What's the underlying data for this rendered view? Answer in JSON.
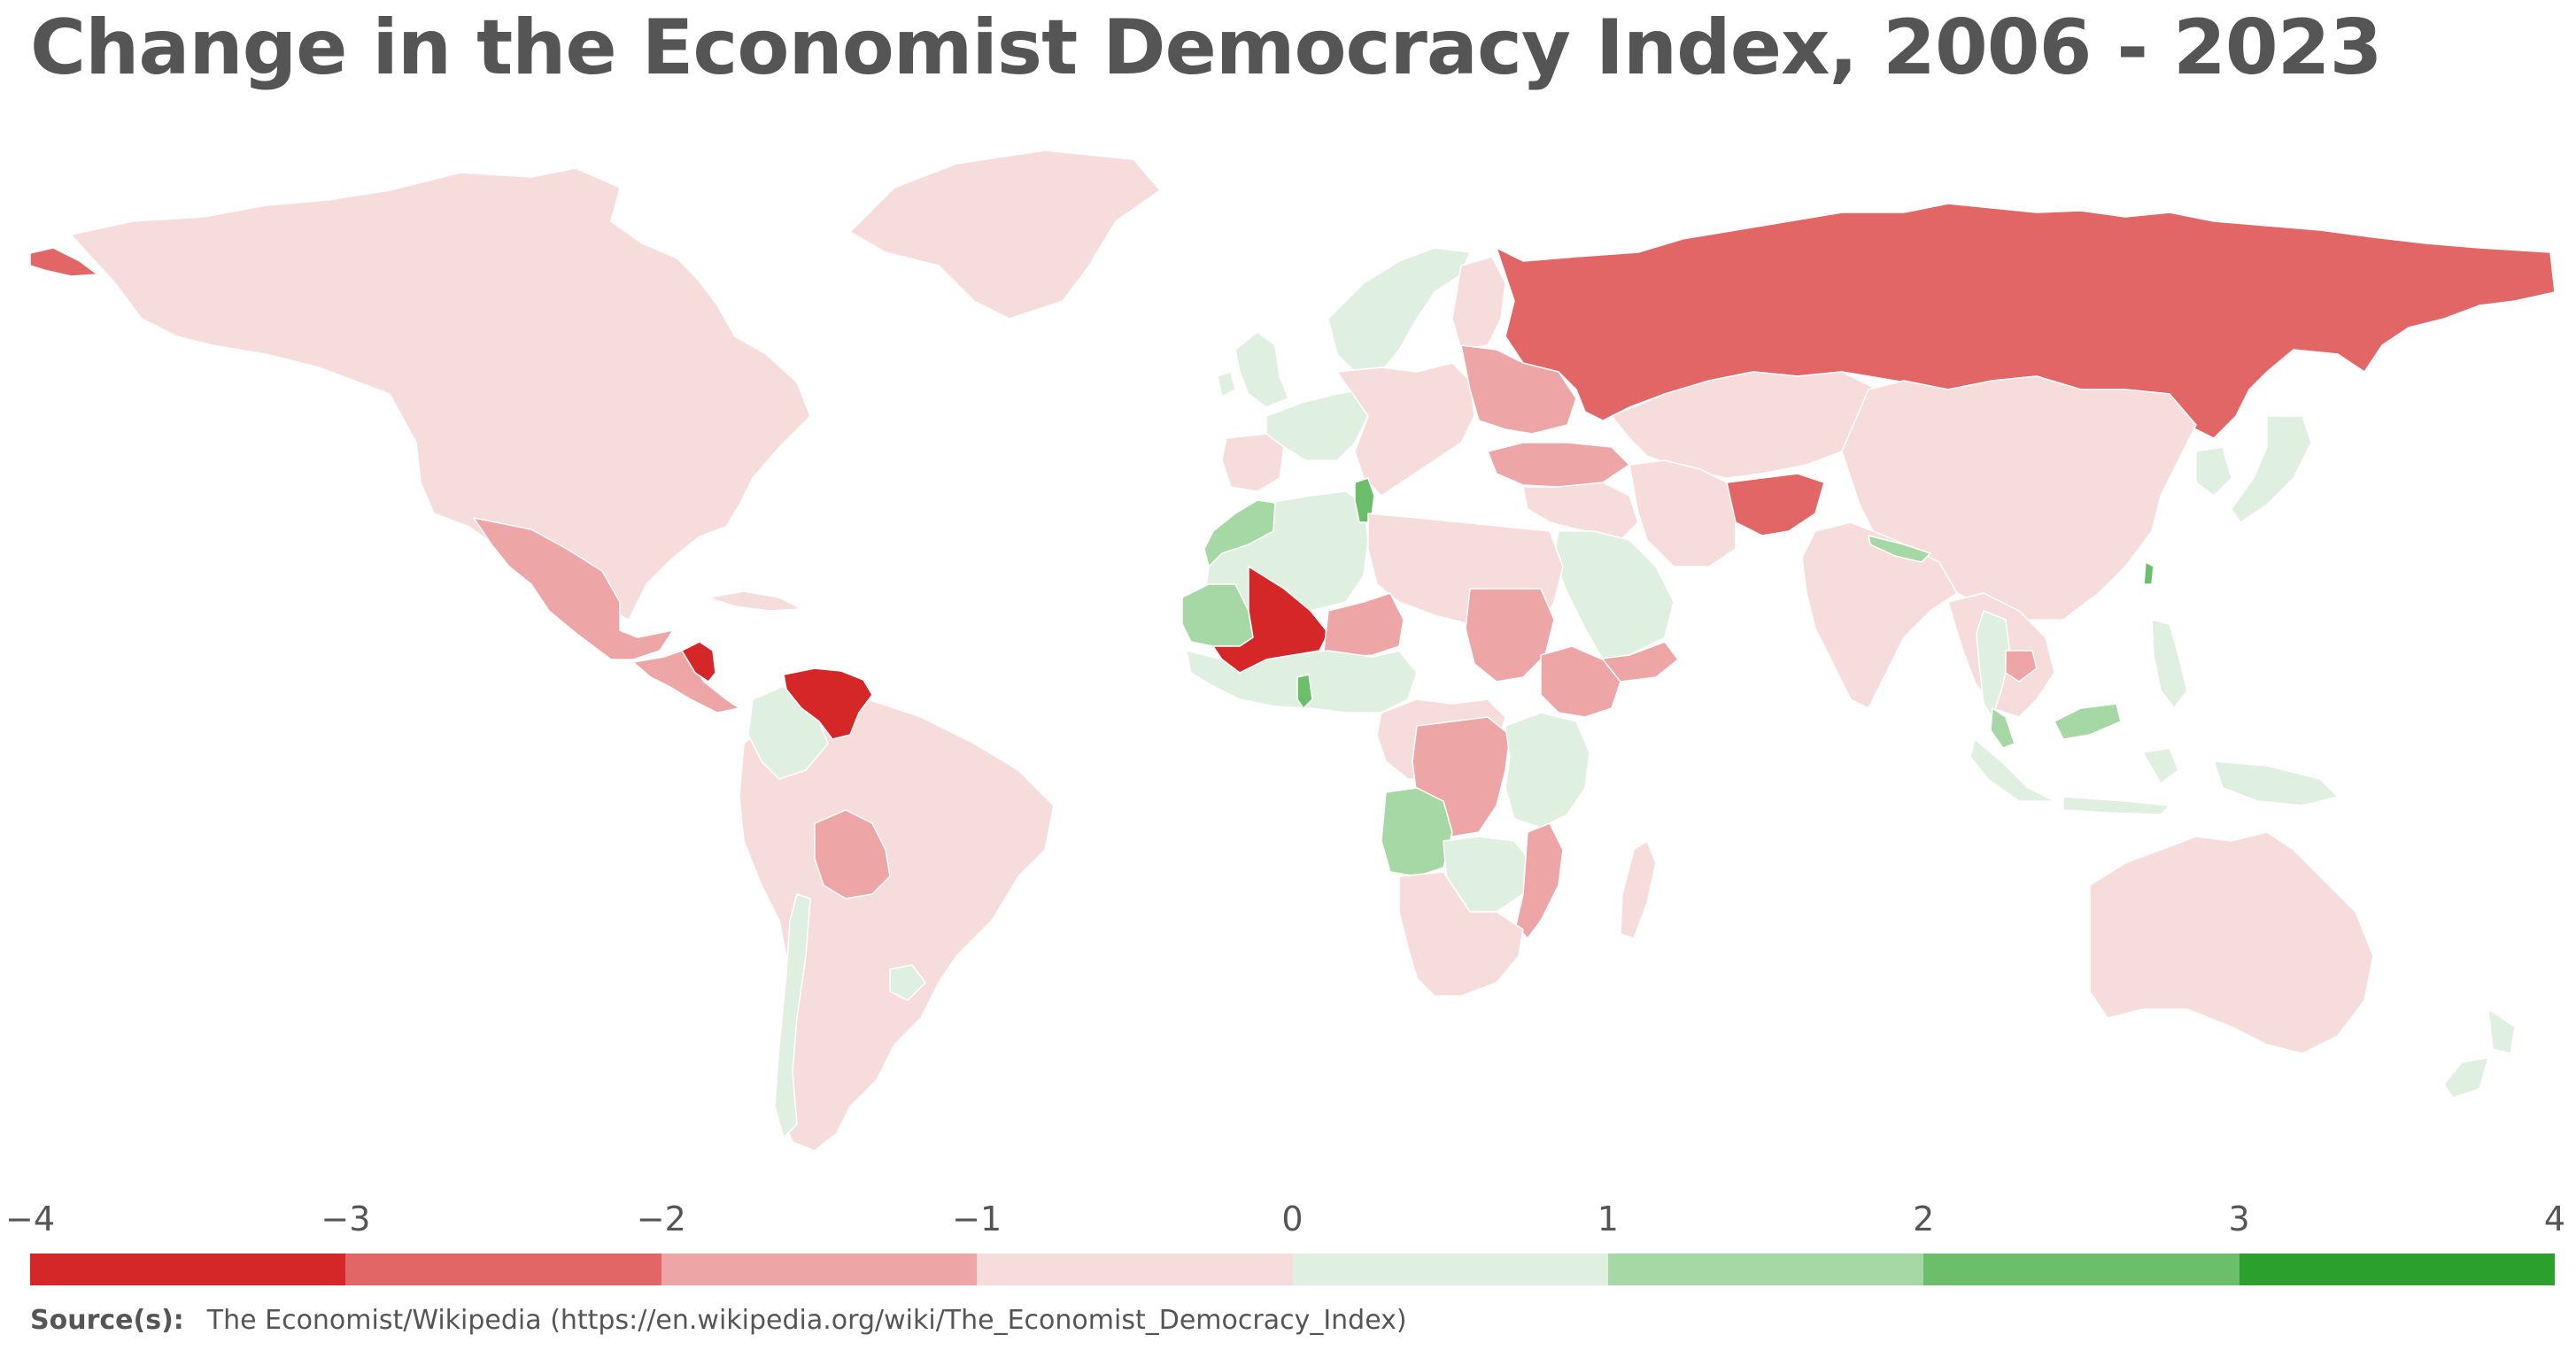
{
  "title": "Change in the Economist Democracy Index, 2006 - 2023",
  "legend": {
    "ticks": [
      "−4",
      "−3",
      "−2",
      "−1",
      "0",
      "1",
      "2",
      "3",
      "4"
    ],
    "bins": [
      {
        "range": [
          -4,
          -3
        ],
        "color": "#d62728"
      },
      {
        "range": [
          -3,
          -2
        ],
        "color": "#e26666"
      },
      {
        "range": [
          -2,
          -1
        ],
        "color": "#eda5a5"
      },
      {
        "range": [
          -1,
          0
        ],
        "color": "#f7dcdc"
      },
      {
        "range": [
          0,
          1
        ],
        "color": "#dfefe0"
      },
      {
        "range": [
          1,
          2
        ],
        "color": "#a6d8a6"
      },
      {
        "range": [
          2,
          3
        ],
        "color": "#6bbf6b"
      },
      {
        "range": [
          3,
          4
        ],
        "color": "#2ca02c"
      }
    ]
  },
  "source": {
    "label": "Source(s):",
    "text": "The Economist/Wikipedia (https://en.wikipedia.org/wiki/The_Economist_Democracy_Index)"
  },
  "map": {
    "regions": [
      {
        "name": "north-america",
        "bin": 3
      },
      {
        "name": "greenland",
        "bin": 3
      },
      {
        "name": "alaska-tip",
        "bin": 1
      },
      {
        "name": "mexico",
        "bin": 2
      },
      {
        "name": "central-america",
        "bin": 2
      },
      {
        "name": "nicaragua",
        "bin": 0
      },
      {
        "name": "cuba",
        "bin": 3
      },
      {
        "name": "south-america",
        "bin": 3
      },
      {
        "name": "venezuela",
        "bin": 0
      },
      {
        "name": "colombia",
        "bin": 4
      },
      {
        "name": "bolivia",
        "bin": 2
      },
      {
        "name": "chile",
        "bin": 4
      },
      {
        "name": "uruguay",
        "bin": 4
      },
      {
        "name": "norway-sweden",
        "bin": 4
      },
      {
        "name": "finland",
        "bin": 3
      },
      {
        "name": "british-isles",
        "bin": 4
      },
      {
        "name": "western-europe",
        "bin": 4
      },
      {
        "name": "iberia",
        "bin": 3
      },
      {
        "name": "central-europe",
        "bin": 3
      },
      {
        "name": "belarus-ukraine",
        "bin": 2
      },
      {
        "name": "turkey",
        "bin": 2
      },
      {
        "name": "russia",
        "bin": 1
      },
      {
        "name": "kazakhstan-central-asia",
        "bin": 3
      },
      {
        "name": "mongolia-china",
        "bin": 3
      },
      {
        "name": "middle-east",
        "bin": 3
      },
      {
        "name": "arabia",
        "bin": 4
      },
      {
        "name": "yemen",
        "bin": 2
      },
      {
        "name": "iran",
        "bin": 3
      },
      {
        "name": "afghanistan",
        "bin": 1
      },
      {
        "name": "india",
        "bin": 3
      },
      {
        "name": "nepal",
        "bin": 5
      },
      {
        "name": "southeast-asia",
        "bin": 3
      },
      {
        "name": "thailand",
        "bin": 4
      },
      {
        "name": "cambodia",
        "bin": 2
      },
      {
        "name": "malaysia",
        "bin": 5
      },
      {
        "name": "indonesia",
        "bin": 4
      },
      {
        "name": "philippines",
        "bin": 4
      },
      {
        "name": "japan-korea",
        "bin": 4
      },
      {
        "name": "taiwan",
        "bin": 6
      },
      {
        "name": "australia",
        "bin": 3
      },
      {
        "name": "new-zealand",
        "bin": 4
      },
      {
        "name": "north-africa",
        "bin": 4
      },
      {
        "name": "morocco",
        "bin": 5
      },
      {
        "name": "tunisia",
        "bin": 6
      },
      {
        "name": "libya-egypt",
        "bin": 3
      },
      {
        "name": "mauritania",
        "bin": 5
      },
      {
        "name": "mali",
        "bin": 0
      },
      {
        "name": "niger",
        "bin": 2
      },
      {
        "name": "west-africa",
        "bin": 4
      },
      {
        "name": "ghana",
        "bin": 6
      },
      {
        "name": "sudan",
        "bin": 2
      },
      {
        "name": "ethiopia",
        "bin": 2
      },
      {
        "name": "central-africa",
        "bin": 3
      },
      {
        "name": "drc",
        "bin": 2
      },
      {
        "name": "east-africa",
        "bin": 4
      },
      {
        "name": "angola",
        "bin": 5
      },
      {
        "name": "zambia-zimbabwe",
        "bin": 4
      },
      {
        "name": "mozambique",
        "bin": 2
      },
      {
        "name": "southern-africa",
        "bin": 3
      },
      {
        "name": "madagascar",
        "bin": 3
      }
    ]
  }
}
